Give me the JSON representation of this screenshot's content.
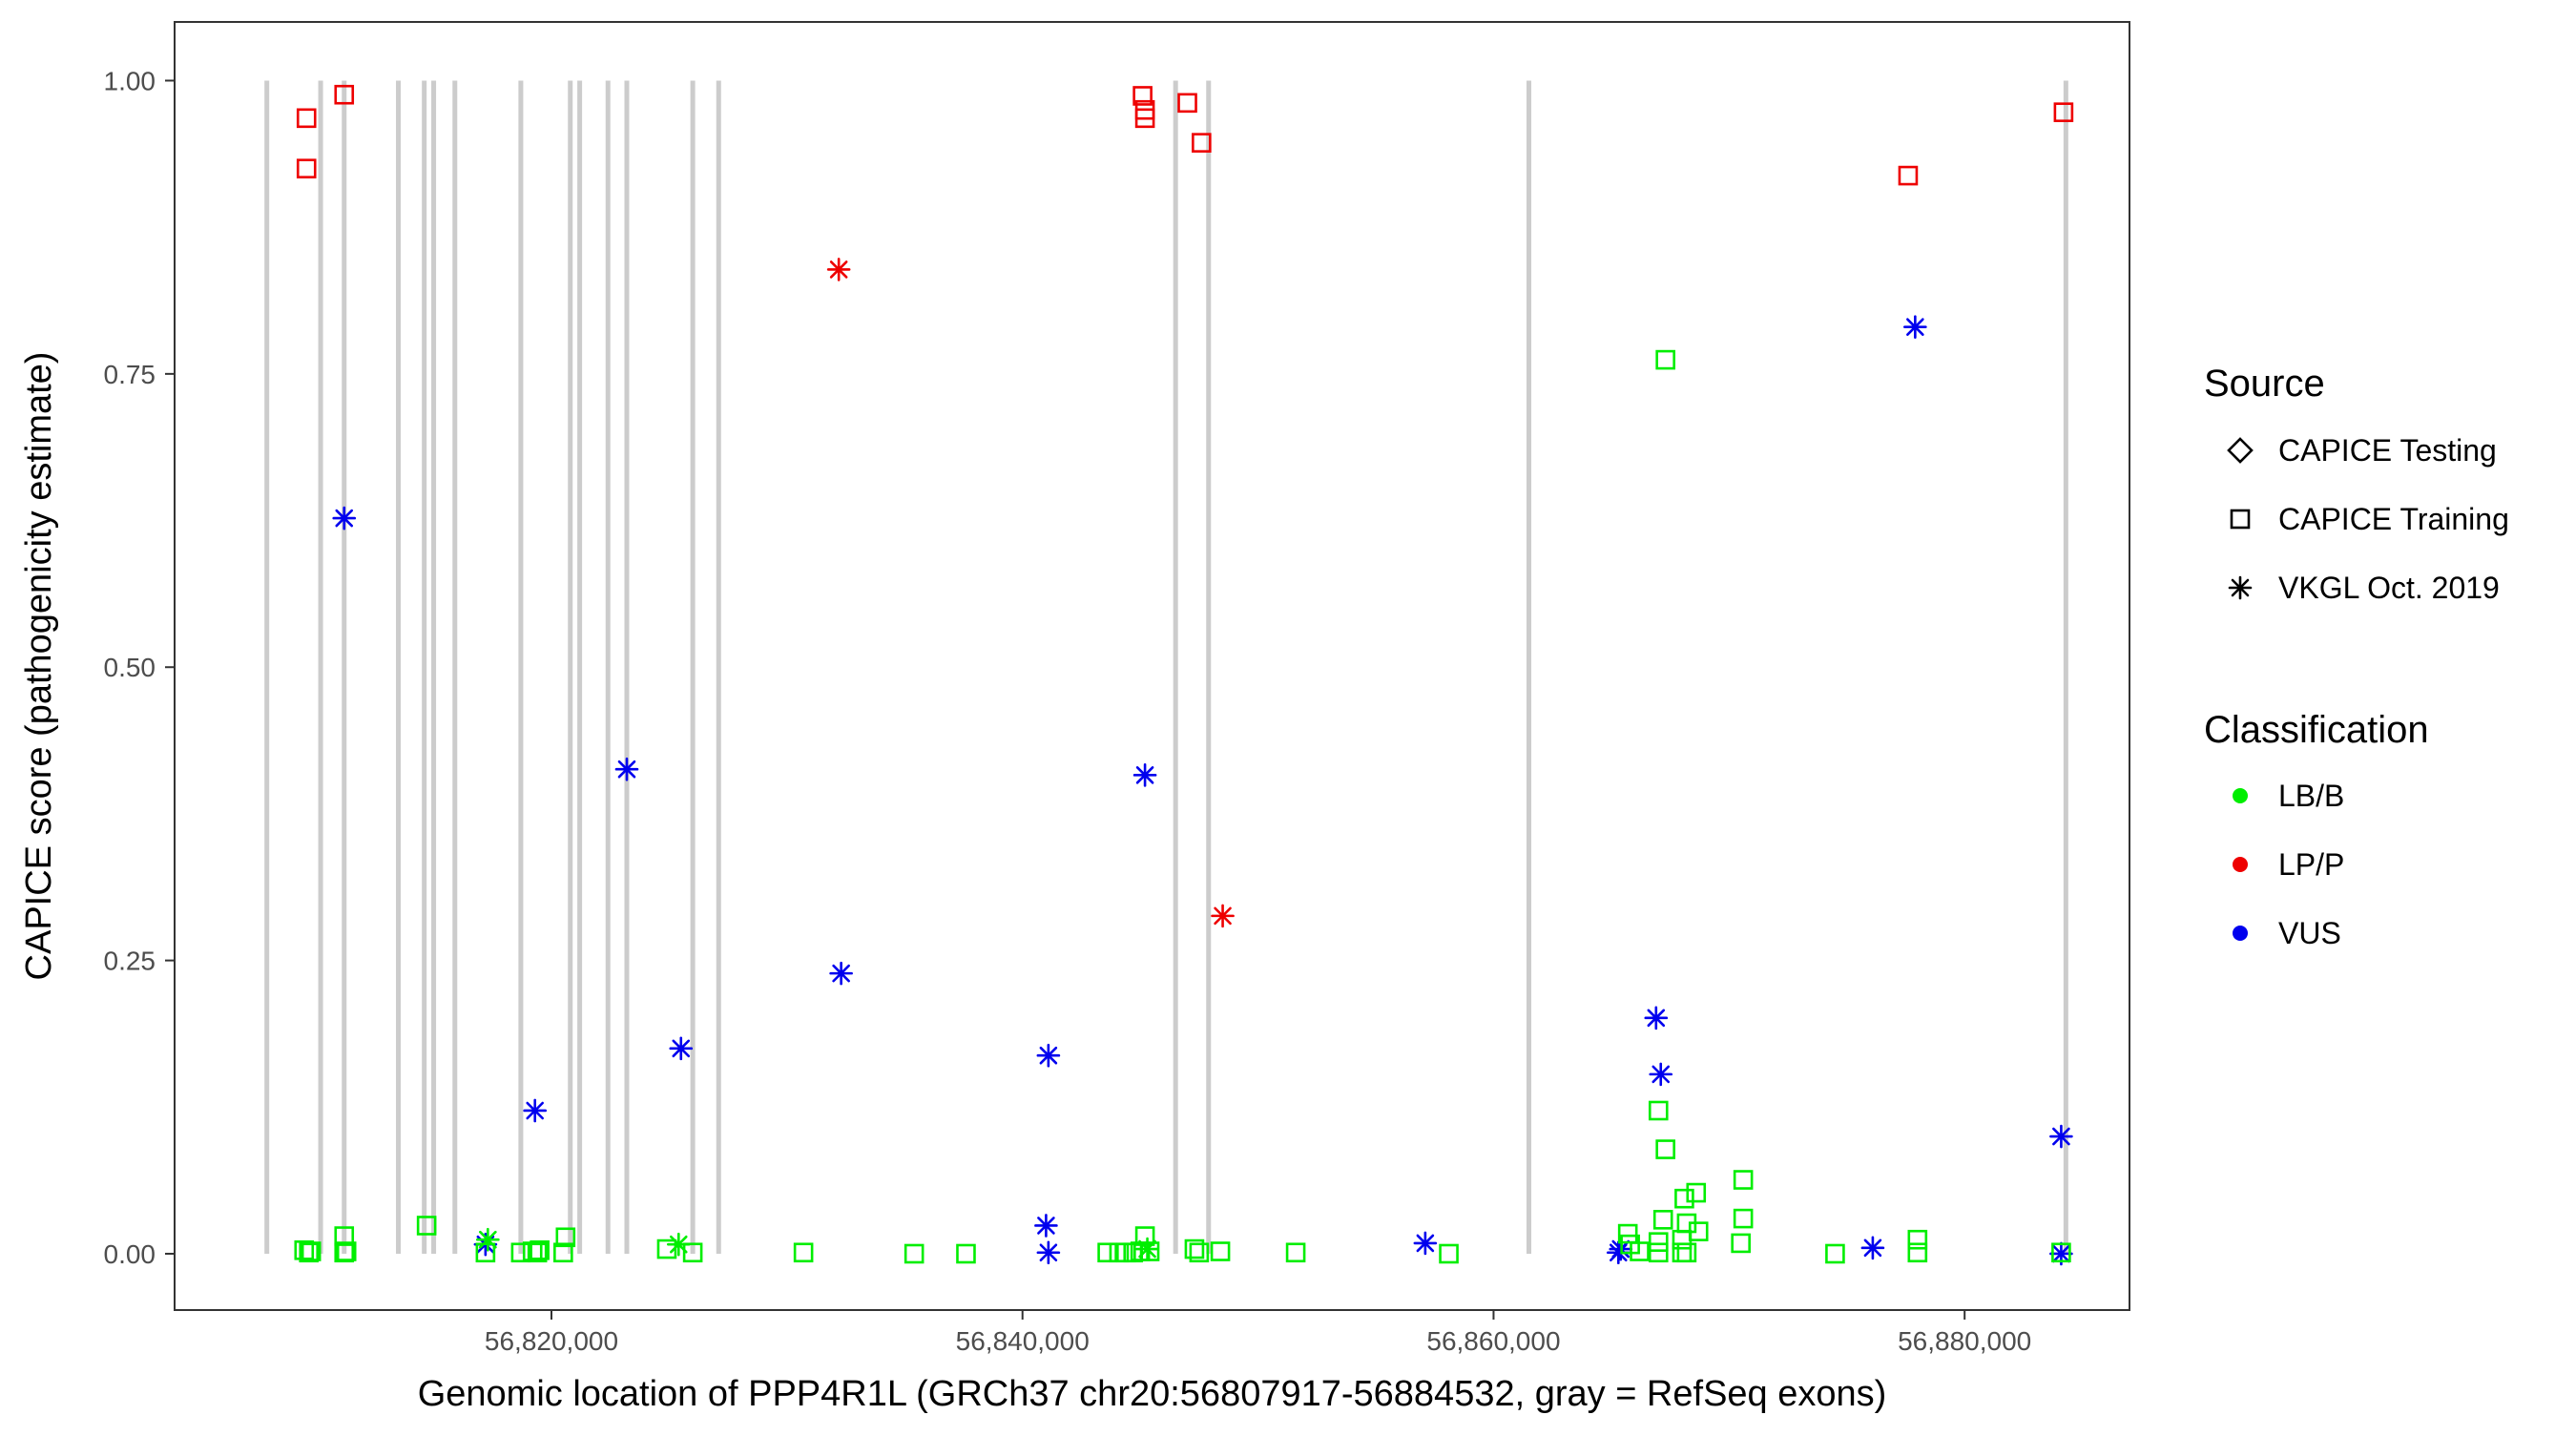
{
  "chart_data": {
    "type": "scatter",
    "xlabel": "Genomic location of PPP4R1L (GRCh37 chr20:56807917-56884532, gray = RefSeq exons)",
    "ylabel": "CAPICE score (pathogenicity estimate)",
    "xlim": [
      56804000,
      56887000
    ],
    "ylim": [
      -0.048,
      1.05
    ],
    "x_ticks": [
      56820000,
      56840000,
      56860000,
      56880000
    ],
    "x_tick_labels": [
      "56,820,000",
      "56,840,000",
      "56,860,000",
      "56,880,000"
    ],
    "y_ticks": [
      0,
      0.25,
      0.5,
      0.75,
      1.0
    ],
    "y_tick_labels": [
      "0.00",
      "0.25",
      "0.50",
      "0.75",
      "1.00"
    ],
    "grid": false,
    "exons": [
      56807917,
      56810200,
      56811200,
      56813500,
      56814600,
      56815000,
      56815900,
      56818700,
      56820800,
      56821200,
      56822400,
      56823200,
      56826000,
      56827100,
      56846500,
      56847900,
      56861500,
      56884300
    ],
    "colors": {
      "LB/B": "#00ee00",
      "LP/P": "#ee0000",
      "VUS": "#0000ee",
      "exon": "#cccccc",
      "frame": "#333333"
    },
    "legend": {
      "position": "right",
      "source_title": "Source",
      "source_items": [
        {
          "label": "CAPICE Testing",
          "shape": "diamond"
        },
        {
          "label": "CAPICE Training",
          "shape": "square"
        },
        {
          "label": "VKGL Oct. 2019",
          "shape": "asterisk"
        }
      ],
      "class_title": "Classification",
      "class_items": [
        {
          "label": "LB/B",
          "color": "#00ee00"
        },
        {
          "label": "LP/P",
          "color": "#ee0000"
        },
        {
          "label": "VUS",
          "color": "#0000ee"
        }
      ]
    },
    "points": [
      {
        "x": 56809600,
        "y": 0.968,
        "shape": "square",
        "cls": "LP/P"
      },
      {
        "x": 56809600,
        "y": 0.925,
        "shape": "square",
        "cls": "LP/P"
      },
      {
        "x": 56811200,
        "y": 0.988,
        "shape": "square",
        "cls": "LP/P"
      },
      {
        "x": 56845100,
        "y": 0.987,
        "shape": "square",
        "cls": "LP/P"
      },
      {
        "x": 56845200,
        "y": 0.975,
        "shape": "square",
        "cls": "LP/P"
      },
      {
        "x": 56845200,
        "y": 0.968,
        "shape": "square",
        "cls": "LP/P"
      },
      {
        "x": 56847000,
        "y": 0.981,
        "shape": "square",
        "cls": "LP/P"
      },
      {
        "x": 56847600,
        "y": 0.947,
        "shape": "square",
        "cls": "LP/P"
      },
      {
        "x": 56877600,
        "y": 0.919,
        "shape": "square",
        "cls": "LP/P"
      },
      {
        "x": 56884200,
        "y": 0.973,
        "shape": "square",
        "cls": "LP/P"
      },
      {
        "x": 56832200,
        "y": 0.839,
        "shape": "asterisk",
        "cls": "LP/P"
      },
      {
        "x": 56848500,
        "y": 0.288,
        "shape": "asterisk",
        "cls": "LP/P"
      },
      {
        "x": 56811200,
        "y": 0.627,
        "shape": "asterisk",
        "cls": "VUS"
      },
      {
        "x": 56823200,
        "y": 0.413,
        "shape": "asterisk",
        "cls": "VUS"
      },
      {
        "x": 56845200,
        "y": 0.408,
        "shape": "asterisk",
        "cls": "VUS"
      },
      {
        "x": 56832300,
        "y": 0.239,
        "shape": "asterisk",
        "cls": "VUS"
      },
      {
        "x": 56825500,
        "y": 0.175,
        "shape": "asterisk",
        "cls": "VUS"
      },
      {
        "x": 56841100,
        "y": 0.169,
        "shape": "asterisk",
        "cls": "VUS"
      },
      {
        "x": 56819300,
        "y": 0.122,
        "shape": "asterisk",
        "cls": "VUS"
      },
      {
        "x": 56841000,
        "y": 0.024,
        "shape": "asterisk",
        "cls": "VUS"
      },
      {
        "x": 56841100,
        "y": 0.001,
        "shape": "asterisk",
        "cls": "VUS"
      },
      {
        "x": 56817200,
        "y": 0.008,
        "shape": "asterisk",
        "cls": "VUS"
      },
      {
        "x": 56857100,
        "y": 0.009,
        "shape": "asterisk",
        "cls": "VUS"
      },
      {
        "x": 56866900,
        "y": 0.201,
        "shape": "asterisk",
        "cls": "VUS"
      },
      {
        "x": 56867100,
        "y": 0.153,
        "shape": "asterisk",
        "cls": "VUS"
      },
      {
        "x": 56865300,
        "y": 0.001,
        "shape": "asterisk",
        "cls": "VUS"
      },
      {
        "x": 56865400,
        "y": 0.004,
        "shape": "asterisk",
        "cls": "VUS"
      },
      {
        "x": 56876100,
        "y": 0.005,
        "shape": "asterisk",
        "cls": "VUS"
      },
      {
        "x": 56877900,
        "y": 0.79,
        "shape": "asterisk",
        "cls": "VUS"
      },
      {
        "x": 56884100,
        "y": 0.1,
        "shape": "asterisk",
        "cls": "VUS"
      },
      {
        "x": 56884100,
        "y": 0.0,
        "shape": "asterisk",
        "cls": "VUS"
      },
      {
        "x": 56867300,
        "y": 0.762,
        "shape": "square",
        "cls": "LB/B"
      },
      {
        "x": 56867000,
        "y": 0.122,
        "shape": "square",
        "cls": "LB/B"
      },
      {
        "x": 56867300,
        "y": 0.089,
        "shape": "square",
        "cls": "LB/B"
      },
      {
        "x": 56870600,
        "y": 0.063,
        "shape": "square",
        "cls": "LB/B"
      },
      {
        "x": 56868600,
        "y": 0.052,
        "shape": "square",
        "cls": "LB/B"
      },
      {
        "x": 56868100,
        "y": 0.047,
        "shape": "square",
        "cls": "LB/B"
      },
      {
        "x": 56867200,
        "y": 0.029,
        "shape": "square",
        "cls": "LB/B"
      },
      {
        "x": 56868200,
        "y": 0.026,
        "shape": "square",
        "cls": "LB/B"
      },
      {
        "x": 56870600,
        "y": 0.03,
        "shape": "square",
        "cls": "LB/B"
      },
      {
        "x": 56868700,
        "y": 0.019,
        "shape": "square",
        "cls": "LB/B"
      },
      {
        "x": 56865700,
        "y": 0.017,
        "shape": "square",
        "cls": "LB/B"
      },
      {
        "x": 56868000,
        "y": 0.012,
        "shape": "square",
        "cls": "LB/B"
      },
      {
        "x": 56867000,
        "y": 0.01,
        "shape": "square",
        "cls": "LB/B"
      },
      {
        "x": 56870500,
        "y": 0.009,
        "shape": "square",
        "cls": "LB/B"
      },
      {
        "x": 56865800,
        "y": 0.008,
        "shape": "square",
        "cls": "LB/B"
      },
      {
        "x": 56866200,
        "y": 0.002,
        "shape": "square",
        "cls": "LB/B"
      },
      {
        "x": 56867000,
        "y": 0.001,
        "shape": "square",
        "cls": "LB/B"
      },
      {
        "x": 56868000,
        "y": 0.001,
        "shape": "square",
        "cls": "LB/B"
      },
      {
        "x": 56868200,
        "y": 0.001,
        "shape": "square",
        "cls": "LB/B"
      },
      {
        "x": 56878000,
        "y": 0.012,
        "shape": "square",
        "cls": "LB/B"
      },
      {
        "x": 56878000,
        "y": 0.001,
        "shape": "square",
        "cls": "LB/B"
      },
      {
        "x": 56874500,
        "y": 0.0,
        "shape": "square",
        "cls": "LB/B"
      },
      {
        "x": 56884100,
        "y": 0.001,
        "shape": "square",
        "cls": "LB/B"
      },
      {
        "x": 56809500,
        "y": 0.003,
        "shape": "square",
        "cls": "LB/B"
      },
      {
        "x": 56809700,
        "y": 0.001,
        "shape": "square",
        "cls": "LB/B"
      },
      {
        "x": 56809800,
        "y": 0.002,
        "shape": "square",
        "cls": "LB/B"
      },
      {
        "x": 56811200,
        "y": 0.015,
        "shape": "square",
        "cls": "LB/B"
      },
      {
        "x": 56811200,
        "y": 0.001,
        "shape": "square",
        "cls": "LB/B"
      },
      {
        "x": 56811300,
        "y": 0.002,
        "shape": "square",
        "cls": "LB/B"
      },
      {
        "x": 56814700,
        "y": 0.024,
        "shape": "square",
        "cls": "LB/B"
      },
      {
        "x": 56817300,
        "y": 0.012,
        "shape": "asterisk",
        "cls": "LB/B"
      },
      {
        "x": 56817200,
        "y": 0.001,
        "shape": "square",
        "cls": "LB/B"
      },
      {
        "x": 56818700,
        "y": 0.001,
        "shape": "square",
        "cls": "LB/B"
      },
      {
        "x": 56819200,
        "y": 0.002,
        "shape": "square",
        "cls": "LB/B"
      },
      {
        "x": 56819400,
        "y": 0.001,
        "shape": "square",
        "cls": "LB/B"
      },
      {
        "x": 56819500,
        "y": 0.003,
        "shape": "square",
        "cls": "LB/B"
      },
      {
        "x": 56820600,
        "y": 0.014,
        "shape": "square",
        "cls": "LB/B"
      },
      {
        "x": 56820500,
        "y": 0.001,
        "shape": "square",
        "cls": "LB/B"
      },
      {
        "x": 56824900,
        "y": 0.004,
        "shape": "square",
        "cls": "LB/B"
      },
      {
        "x": 56825400,
        "y": 0.008,
        "shape": "asterisk",
        "cls": "LB/B"
      },
      {
        "x": 56826000,
        "y": 0.001,
        "shape": "square",
        "cls": "LB/B"
      },
      {
        "x": 56830700,
        "y": 0.001,
        "shape": "square",
        "cls": "LB/B"
      },
      {
        "x": 56835400,
        "y": 0.0,
        "shape": "square",
        "cls": "LB/B"
      },
      {
        "x": 56837600,
        "y": 0.0,
        "shape": "square",
        "cls": "LB/B"
      },
      {
        "x": 56843600,
        "y": 0.001,
        "shape": "square",
        "cls": "LB/B"
      },
      {
        "x": 56844100,
        "y": 0.001,
        "shape": "square",
        "cls": "LB/B"
      },
      {
        "x": 56844400,
        "y": 0.001,
        "shape": "square",
        "cls": "LB/B"
      },
      {
        "x": 56844700,
        "y": 0.001,
        "shape": "square",
        "cls": "LB/B"
      },
      {
        "x": 56845000,
        "y": 0.002,
        "shape": "square",
        "cls": "LB/B"
      },
      {
        "x": 56845200,
        "y": 0.015,
        "shape": "square",
        "cls": "LB/B"
      },
      {
        "x": 56845400,
        "y": 0.002,
        "shape": "square",
        "cls": "LB/B"
      },
      {
        "x": 56845300,
        "y": 0.004,
        "shape": "asterisk",
        "cls": "LB/B"
      },
      {
        "x": 56847300,
        "y": 0.004,
        "shape": "square",
        "cls": "LB/B"
      },
      {
        "x": 56847500,
        "y": 0.001,
        "shape": "square",
        "cls": "LB/B"
      },
      {
        "x": 56848400,
        "y": 0.002,
        "shape": "square",
        "cls": "LB/B"
      },
      {
        "x": 56851600,
        "y": 0.001,
        "shape": "square",
        "cls": "LB/B"
      },
      {
        "x": 56858100,
        "y": 0.0,
        "shape": "square",
        "cls": "LB/B"
      }
    ]
  }
}
